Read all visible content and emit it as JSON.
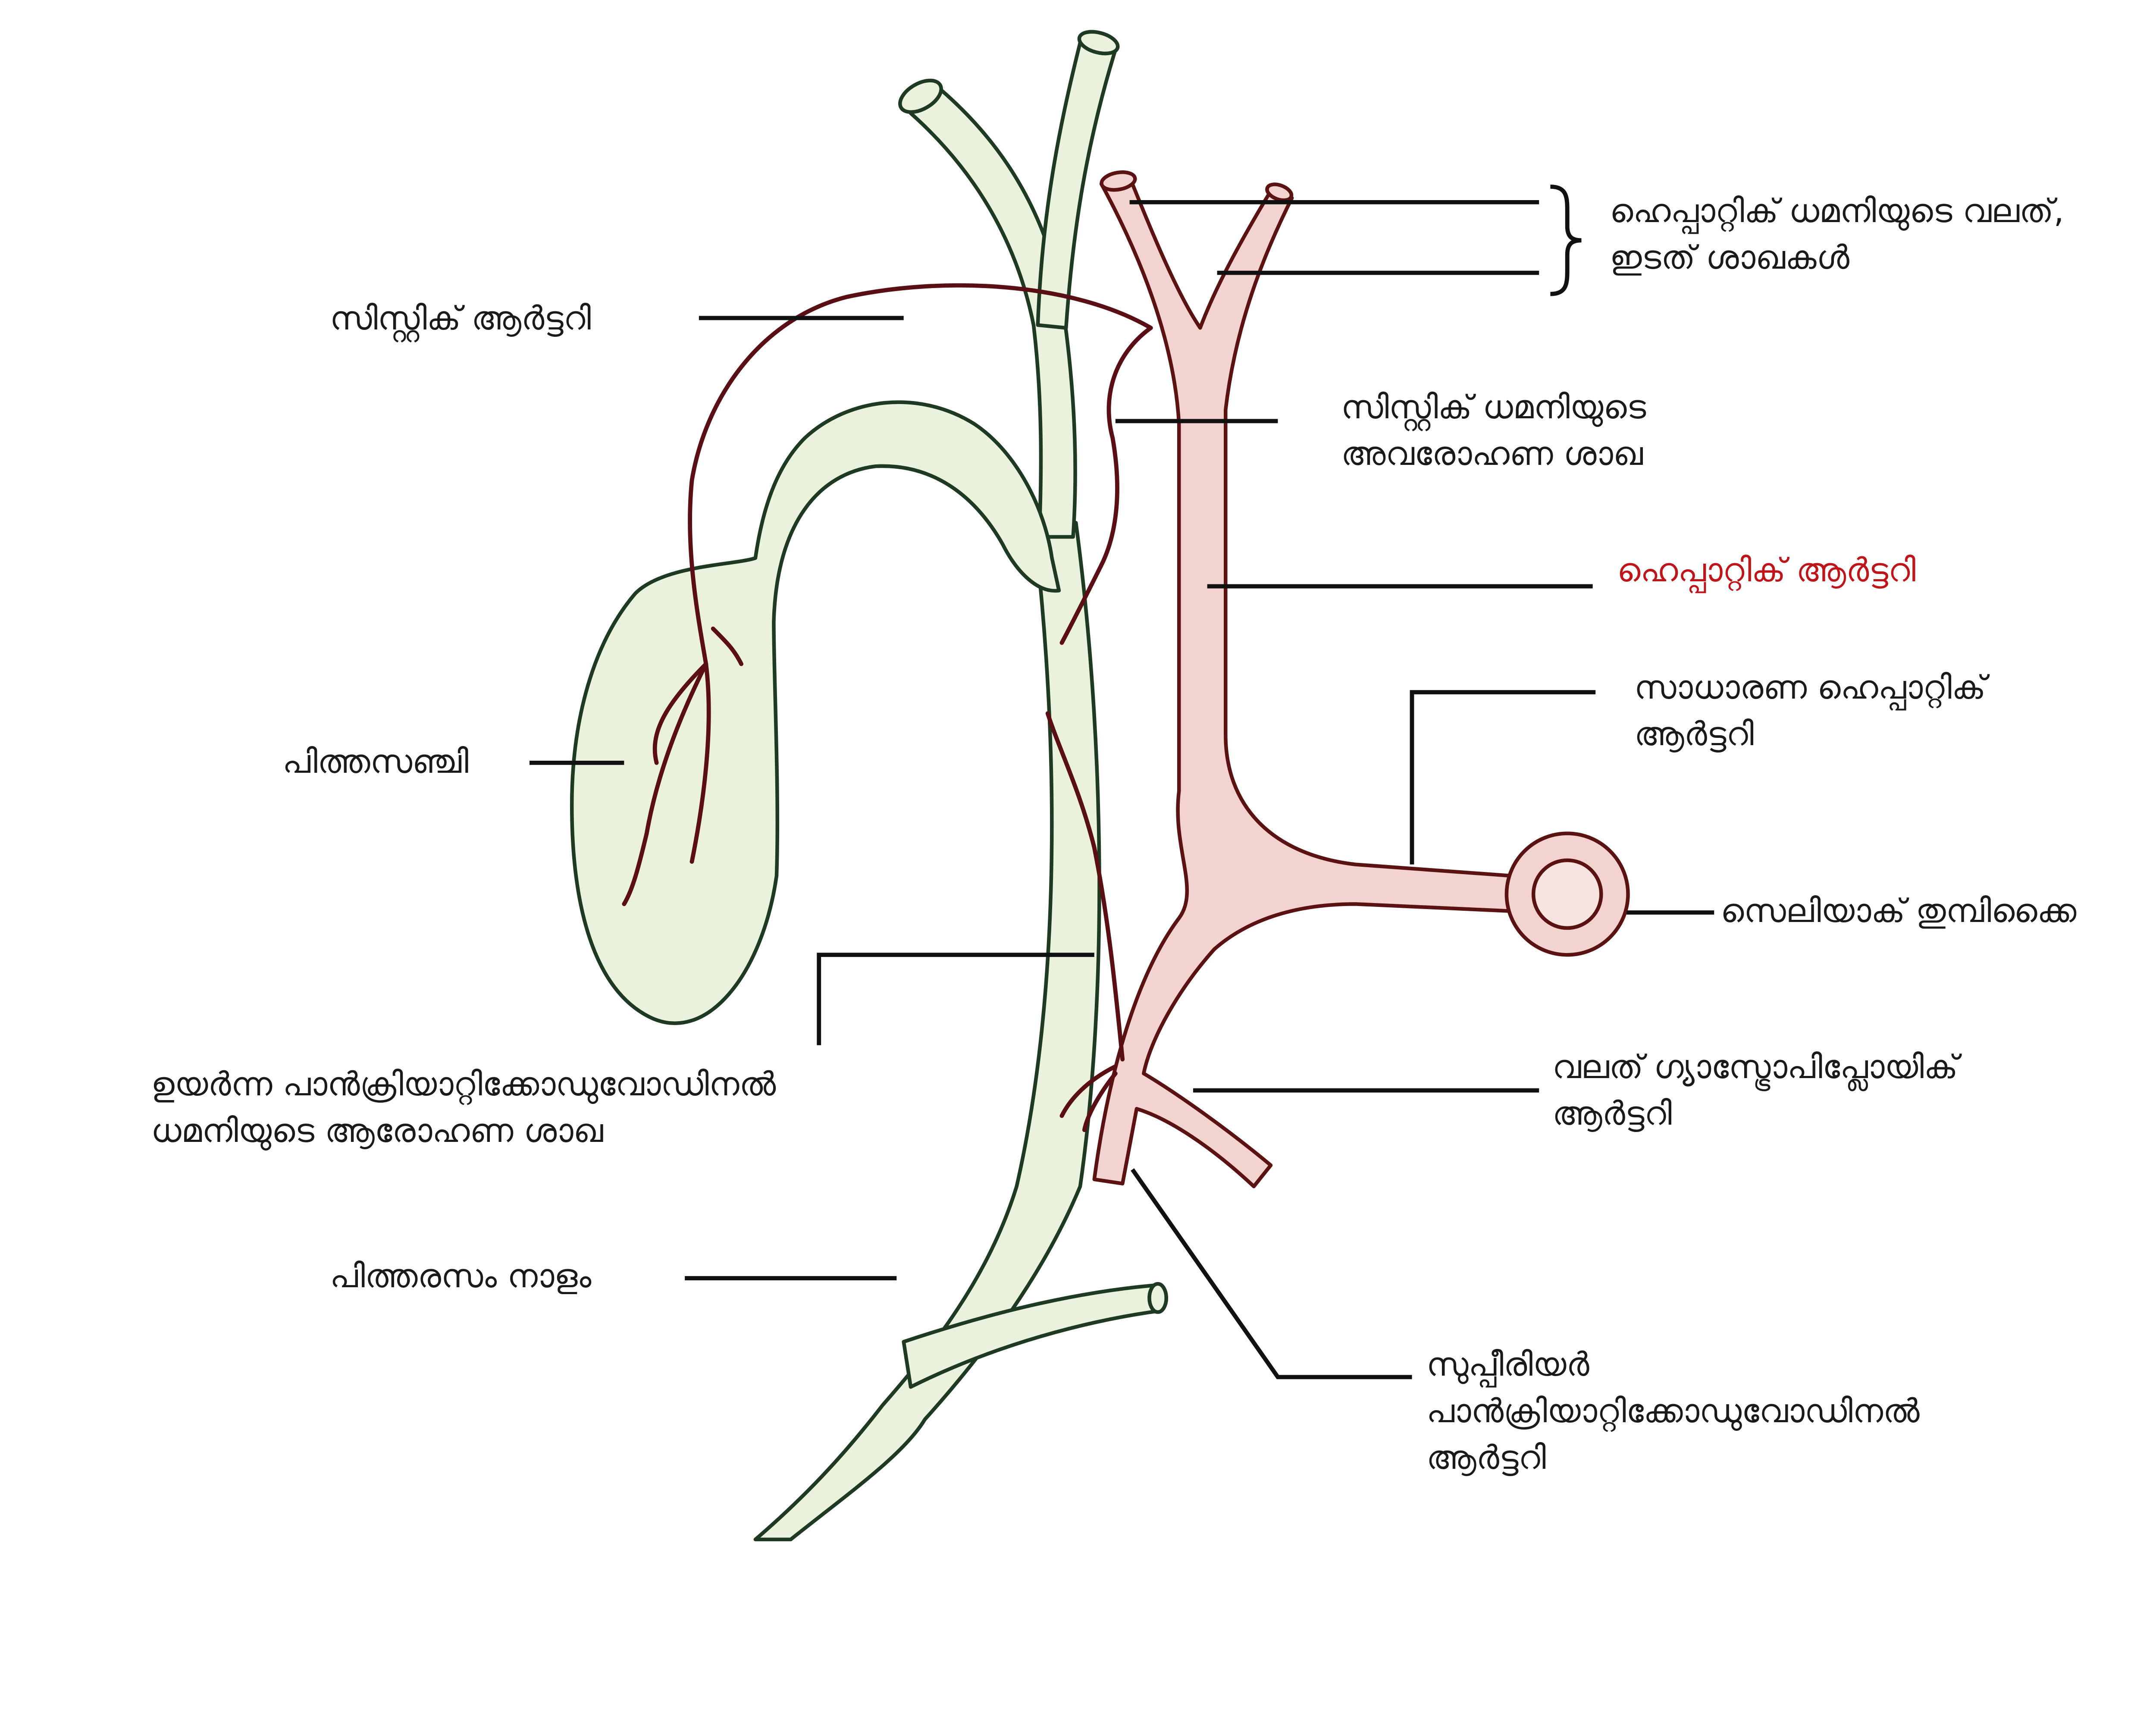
{
  "colors": {
    "duct_fill": "#eaf2de",
    "duct_stroke": "#1f3a22",
    "artery_fill": "#f2d3cf",
    "artery_stroke": "#5b1212",
    "small_artery": "#5a0f14",
    "leader": "#111111",
    "highlight_text": "#c0141b"
  },
  "labels": {
    "hepatic_branches": [
      "ഹെപ്പാറ്റിക് ധമനിയുടെ വലത്,",
      "ഇടത് ശാഖകൾ"
    ],
    "cystic_artery": "സിസ്റ്റിക് ആർട്ടറി",
    "cystic_descending": [
      "സിസ്റ്റിക് ധമനിയുടെ",
      "അവരോഹണ ശാഖ"
    ],
    "hepatic_artery": "ഹെപ്പാറ്റിക് ആർട്ടറി",
    "common_hepatic": [
      "സാധാരണ ഹെപ്പാറ്റിക്",
      "ആർട്ടറി"
    ],
    "gallbladder": "പിത്തസഞ്ചി",
    "celiac_trunk": "സെലിയാക് തുമ്പിക്കൈ",
    "superior_pd_ascending": [
      "ഉയർന്ന പാൻക്രിയാറ്റിക്കോഡുവോഡിനൽ",
      "ധമനിയുടെ ആരോഹണ ശാഖ"
    ],
    "right_gastroepiploic": [
      "വലത് ഗ്യാസ്ട്രോപിപ്ലോയിക്",
      "ആർട്ടറി"
    ],
    "bile_duct": "പിത്തരസം നാളം",
    "superior_pd_artery": [
      "സുപ്പീരിയർ",
      "പാൻക്രിയാറ്റിക്കോഡുവോഡിനൽ",
      "ആർട്ടറി"
    ]
  }
}
